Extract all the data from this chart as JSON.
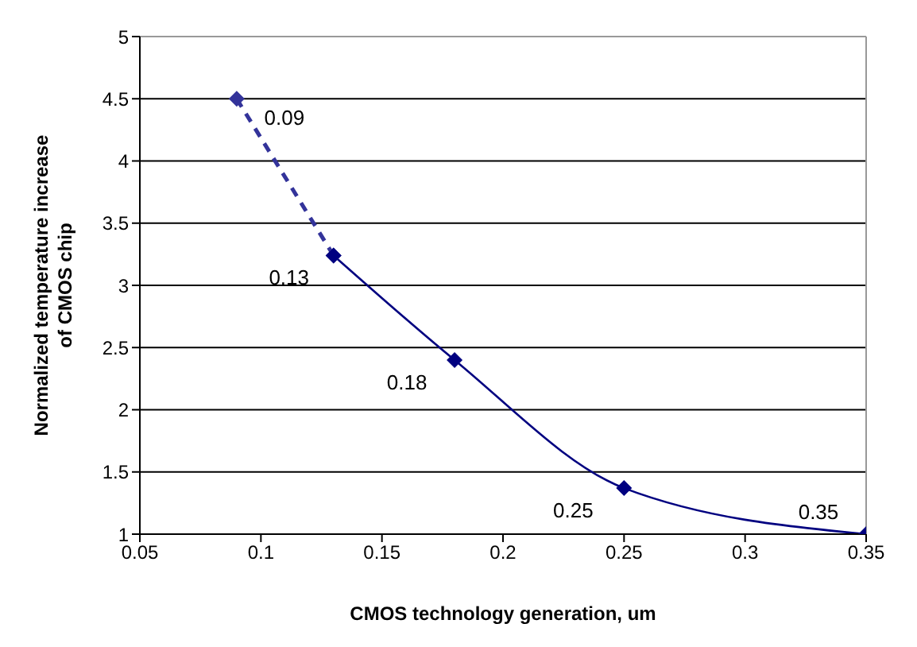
{
  "chart_data": {
    "type": "line",
    "xlabel": "CMOS technology generation, um",
    "ylabel": "Normalized temperature increase of CMOS chip",
    "series": [
      {
        "color": "#33339a",
        "x": [
          0.09,
          0.13
        ],
        "values": [
          4.5,
          3.24
        ],
        "line_style": "dashed"
      },
      {
        "color": "#000080",
        "x": [
          0.13,
          0.18,
          0.25,
          0.35
        ],
        "values": [
          3.24,
          2.4,
          1.37,
          1.0
        ],
        "line_style": "solid"
      }
    ],
    "annotations": [
      {
        "text": "0.09",
        "x": 0.09,
        "y": 4.5
      },
      {
        "text": "0.13",
        "x": 0.13,
        "y": 3.24
      },
      {
        "text": "0.18",
        "x": 0.18,
        "y": 2.4
      },
      {
        "text": "0.25",
        "x": 0.25,
        "y": 1.37
      },
      {
        "text": "0.35",
        "x": 0.35,
        "y": 1.0
      }
    ],
    "xlim": [
      0.05,
      0.35
    ],
    "xticks": [
      0.05,
      0.1,
      0.15,
      0.2,
      0.25,
      0.3,
      0.35
    ],
    "ylim": [
      1,
      5
    ],
    "yticks": [
      1,
      1.5,
      2,
      2.5,
      3,
      3.5,
      4,
      4.5,
      5
    ],
    "grid": "y",
    "marker": "diamond"
  }
}
